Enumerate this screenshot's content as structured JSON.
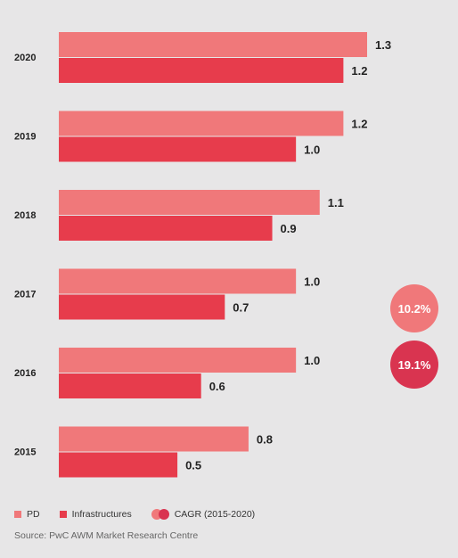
{
  "colors": {
    "pd": "#f0787a",
    "infrastructures": "#e73c4c",
    "cagr_pd": "#f0787a",
    "cagr_infra": "#d93450"
  },
  "chart_data": {
    "type": "bar",
    "orientation": "horizontal",
    "categories": [
      "2020",
      "2019",
      "2018",
      "2017",
      "2016",
      "2015"
    ],
    "series": [
      {
        "name": "PD",
        "values": [
          1.3,
          1.2,
          1.1,
          1.0,
          1.0,
          0.8
        ],
        "labels": [
          "1.3",
          "1.2",
          "1.1",
          "1.0",
          "1.0",
          "0.8"
        ]
      },
      {
        "name": "Infrastructures",
        "values": [
          1.2,
          1.0,
          0.9,
          0.7,
          0.6,
          0.5
        ],
        "labels": [
          "1.2",
          "1.0",
          "0.9",
          "0.7",
          "0.6",
          "0.5"
        ]
      }
    ],
    "xlim": [
      0,
      1.3
    ],
    "grid": false,
    "legend_position": "bottom-left"
  },
  "cagr": {
    "pd": "10.2%",
    "infrastructures": "19.1%"
  },
  "legend": {
    "pd": "PD",
    "infrastructures": "Infrastructures",
    "cagr": "CAGR (2015-2020)"
  },
  "source": "Source: PwC AWM Market Research Centre"
}
